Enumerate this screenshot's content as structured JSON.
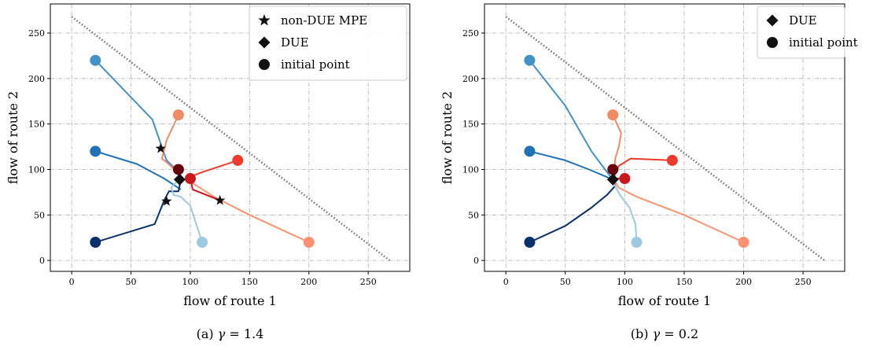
{
  "chart_data": [
    {
      "type": "line",
      "caption_prefix": "(a) ",
      "caption_symbol": "γ",
      "caption_suffix": " = 1.4",
      "xlabel": "flow of route 1",
      "ylabel": "flow of route 2",
      "xlim": [
        -18,
        285
      ],
      "ylim": [
        -12,
        282
      ],
      "xticks": [
        0,
        50,
        100,
        150,
        200,
        250
      ],
      "yticks": [
        0,
        50,
        100,
        150,
        200,
        250
      ],
      "grid": true,
      "legend_position": "top-right",
      "legend": [
        {
          "marker": "star",
          "label": "non-DUE MPE"
        },
        {
          "marker": "diamond",
          "label": "DUE"
        },
        {
          "marker": "circle",
          "label": "initial point"
        }
      ],
      "constraint_line": {
        "style": "dotted",
        "color": "#777777",
        "points": [
          [
            0,
            268
          ],
          [
            268,
            0
          ]
        ]
      },
      "series": [
        {
          "color": "#4292c6",
          "points": [
            [
              20,
              220
            ],
            [
              68,
              155
            ],
            [
              80,
              110
            ],
            [
              88,
              100
            ],
            [
              92,
              90
            ]
          ]
        },
        {
          "color": "#2171b5",
          "points": [
            [
              20,
              120
            ],
            [
              55,
              106
            ],
            [
              78,
              90
            ],
            [
              92,
              78
            ]
          ]
        },
        {
          "color": "#08306b",
          "points": [
            [
              20,
              20
            ],
            [
              70,
              40
            ],
            [
              78,
              66
            ],
            [
              82,
              76
            ],
            [
              90,
              76
            ],
            [
              92,
              88
            ]
          ]
        },
        {
          "color": "#9ecae1",
          "points": [
            [
              110,
              20
            ],
            [
              105,
              40
            ],
            [
              100,
              60
            ],
            [
              92,
              70
            ],
            [
              86,
              72
            ],
            [
              84,
              80
            ],
            [
              88,
              86
            ]
          ]
        },
        {
          "color": "#ef8a62",
          "points": [
            [
              90,
              160
            ],
            [
              80,
              132
            ],
            [
              76,
              112
            ],
            [
              80,
              108
            ],
            [
              90,
              96
            ]
          ]
        },
        {
          "color": "#ef3b2c",
          "points": [
            [
              140,
              110
            ],
            [
              110,
              97
            ],
            [
              100,
              92
            ],
            [
              96,
              88
            ]
          ]
        },
        {
          "color": "#fc9272",
          "points": [
            [
              200,
              20
            ],
            [
              150,
              50
            ],
            [
              120,
              70
            ],
            [
              108,
              80
            ],
            [
              98,
              88
            ]
          ]
        },
        {
          "color": "#cb181d",
          "points": [
            [
              100,
              90
            ],
            [
              102,
              78
            ],
            [
              125,
              66
            ]
          ]
        },
        {
          "color": "#67000d",
          "points": [
            [
              90,
              100
            ],
            [
              90,
              95
            ]
          ]
        }
      ],
      "initial_points": [
        {
          "x": 20,
          "y": 220,
          "color": "#4292c6"
        },
        {
          "x": 20,
          "y": 120,
          "color": "#2171b5"
        },
        {
          "x": 20,
          "y": 20,
          "color": "#08306b"
        },
        {
          "x": 110,
          "y": 20,
          "color": "#9ecae1"
        },
        {
          "x": 90,
          "y": 160,
          "color": "#ef8a62"
        },
        {
          "x": 140,
          "y": 110,
          "color": "#ef3b2c"
        },
        {
          "x": 200,
          "y": 20,
          "color": "#fc9272"
        },
        {
          "x": 100,
          "y": 90,
          "color": "#cb181d"
        },
        {
          "x": 90,
          "y": 100,
          "color": "#67000d"
        }
      ],
      "due_points": [
        {
          "x": 91,
          "y": 89
        }
      ],
      "mpe_points": [
        {
          "x": 75,
          "y": 123
        },
        {
          "x": 80,
          "y": 65
        },
        {
          "x": 125,
          "y": 66
        }
      ]
    },
    {
      "type": "line",
      "caption_prefix": "(b) ",
      "caption_symbol": "γ",
      "caption_suffix": " = 0.2",
      "xlabel": "flow of route 1",
      "ylabel": "flow of route 2",
      "xlim": [
        -18,
        285
      ],
      "ylim": [
        -12,
        282
      ],
      "xticks": [
        0,
        50,
        100,
        150,
        200,
        250
      ],
      "yticks": [
        0,
        50,
        100,
        150,
        200,
        250
      ],
      "grid": true,
      "legend_position": "top-right",
      "legend": [
        {
          "marker": "diamond",
          "label": "DUE"
        },
        {
          "marker": "circle",
          "label": "initial point"
        }
      ],
      "constraint_line": {
        "style": "dotted",
        "color": "#777777",
        "points": [
          [
            0,
            268
          ],
          [
            268,
            0
          ]
        ]
      },
      "series": [
        {
          "color": "#4292c6",
          "points": [
            [
              20,
              220
            ],
            [
              50,
              170
            ],
            [
              72,
              120
            ],
            [
              88,
              92
            ]
          ]
        },
        {
          "color": "#2171b5",
          "points": [
            [
              20,
              120
            ],
            [
              50,
              110
            ],
            [
              70,
              100
            ],
            [
              88,
              90
            ]
          ]
        },
        {
          "color": "#08306b",
          "points": [
            [
              20,
              20
            ],
            [
              50,
              38
            ],
            [
              72,
              58
            ],
            [
              85,
              72
            ],
            [
              92,
              82
            ],
            [
              90,
              89
            ]
          ]
        },
        {
          "color": "#9ecae1",
          "points": [
            [
              110,
              20
            ],
            [
              109,
              40
            ],
            [
              104,
              58
            ],
            [
              96,
              72
            ],
            [
              91,
              84
            ]
          ]
        },
        {
          "color": "#ef8a62",
          "points": [
            [
              90,
              160
            ],
            [
              97,
              140
            ],
            [
              95,
              125
            ],
            [
              92,
              112
            ],
            [
              91,
              95
            ]
          ]
        },
        {
          "color": "#ef3b2c",
          "points": [
            [
              140,
              110
            ],
            [
              105,
              112
            ],
            [
              95,
              104
            ],
            [
              91,
              92
            ]
          ]
        },
        {
          "color": "#fc9272",
          "points": [
            [
              200,
              20
            ],
            [
              150,
              50
            ],
            [
              110,
              70
            ],
            [
              95,
              80
            ],
            [
              91,
              88
            ]
          ]
        },
        {
          "color": "#cb181d",
          "points": [
            [
              100,
              90
            ],
            [
              93,
              90
            ]
          ]
        },
        {
          "color": "#67000d",
          "points": [
            [
              90,
              100
            ],
            [
              91,
              92
            ]
          ]
        }
      ],
      "initial_points": [
        {
          "x": 20,
          "y": 220,
          "color": "#4292c6"
        },
        {
          "x": 20,
          "y": 120,
          "color": "#2171b5"
        },
        {
          "x": 20,
          "y": 20,
          "color": "#08306b"
        },
        {
          "x": 110,
          "y": 20,
          "color": "#9ecae1"
        },
        {
          "x": 90,
          "y": 160,
          "color": "#ef8a62"
        },
        {
          "x": 140,
          "y": 110,
          "color": "#ef3b2c"
        },
        {
          "x": 200,
          "y": 20,
          "color": "#fc9272"
        },
        {
          "x": 100,
          "y": 90,
          "color": "#cb181d"
        },
        {
          "x": 90,
          "y": 100,
          "color": "#67000d"
        }
      ],
      "due_points": [
        {
          "x": 90,
          "y": 89
        }
      ],
      "mpe_points": []
    }
  ]
}
